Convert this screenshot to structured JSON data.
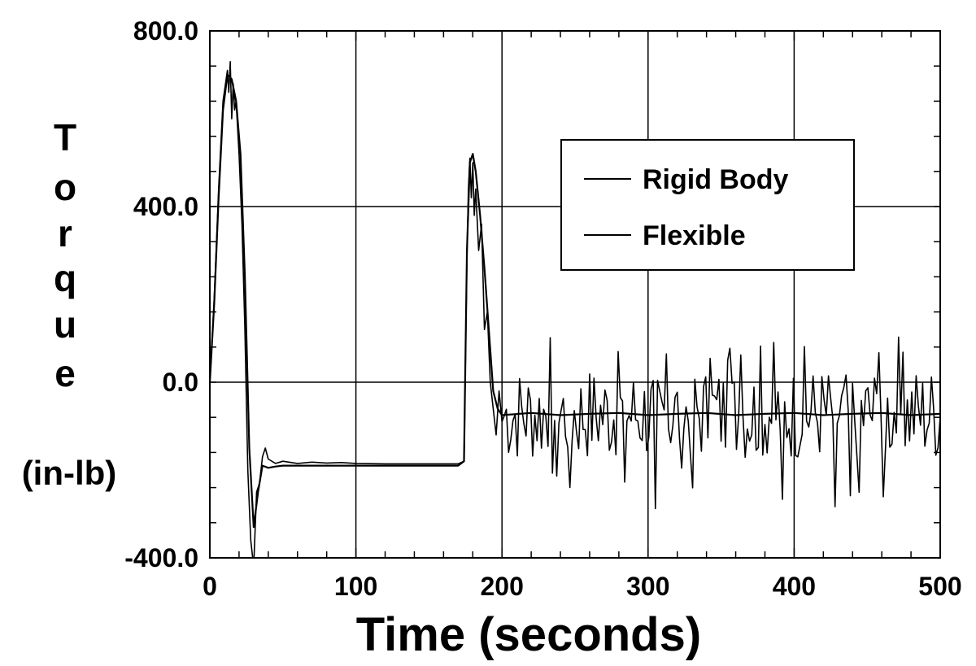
{
  "chart_data": {
    "type": "line",
    "title": "",
    "xlabel": "Time (seconds)",
    "ylabel_letters": [
      "T",
      "o",
      "r",
      "q",
      "u",
      "e"
    ],
    "ylabel_unit": "(in-lb)",
    "xlim": [
      0,
      500
    ],
    "ylim": [
      -400,
      800
    ],
    "x_ticks": [
      0,
      100,
      200,
      300,
      400,
      500
    ],
    "x_tick_labels": [
      "0",
      "100",
      "200",
      "300",
      "400",
      "500"
    ],
    "y_ticks": [
      -400,
      0,
      400,
      800
    ],
    "y_tick_labels": [
      "-400.0",
      "0.0",
      "400.0",
      "800.0"
    ],
    "x_minor_step": 20,
    "y_minor_step": 80,
    "grid": true,
    "legend_position": "top-right",
    "series": [
      {
        "name": "Rigid Body",
        "dash": false,
        "x": [
          0,
          3,
          6,
          9,
          12,
          15,
          18,
          21,
          24,
          27,
          30,
          33,
          36,
          40,
          45,
          50,
          60,
          70,
          80,
          90,
          100,
          120,
          140,
          160,
          170,
          174,
          176,
          178,
          180,
          182,
          185,
          188,
          191,
          194,
          197,
          200,
          220,
          240,
          260,
          280,
          300,
          320,
          340,
          360,
          380,
          400,
          420,
          440,
          460,
          480,
          500
        ],
        "y": [
          0,
          180,
          420,
          620,
          700,
          690,
          640,
          520,
          240,
          -150,
          -330,
          -250,
          -190,
          -195,
          -192,
          -190,
          -190,
          -190,
          -190,
          -190,
          -190,
          -190,
          -190,
          -190,
          -190,
          -180,
          300,
          500,
          520,
          480,
          380,
          260,
          120,
          -20,
          -60,
          -75,
          -70,
          -75,
          -72,
          -70,
          -75,
          -72,
          -70,
          -75,
          -72,
          -70,
          -75,
          -72,
          -70,
          -75,
          -72
        ]
      },
      {
        "name": "Flexible",
        "dash": false,
        "x": [
          0,
          3,
          6,
          9,
          12,
          13,
          14,
          15,
          16,
          17,
          18,
          20,
          22,
          24,
          26,
          28,
          30,
          32,
          34,
          36,
          38,
          40,
          45,
          50,
          60,
          70,
          80,
          90,
          100,
          120,
          140,
          160,
          170,
          174,
          176,
          177,
          178,
          179,
          180,
          181,
          182,
          184,
          186,
          188,
          190,
          192,
          194,
          196,
          198,
          200
        ],
        "y": [
          0,
          190,
          440,
          640,
          710,
          660,
          730,
          600,
          680,
          620,
          640,
          520,
          360,
          120,
          -200,
          -360,
          -420,
          -250,
          -230,
          -170,
          -150,
          -175,
          -185,
          -180,
          -185,
          -182,
          -184,
          -183,
          -185,
          -186,
          -186,
          -186,
          -186,
          -180,
          280,
          440,
          510,
          420,
          500,
          380,
          440,
          300,
          360,
          120,
          160,
          0,
          -60,
          -120,
          -20,
          -90
        ]
      }
    ]
  }
}
